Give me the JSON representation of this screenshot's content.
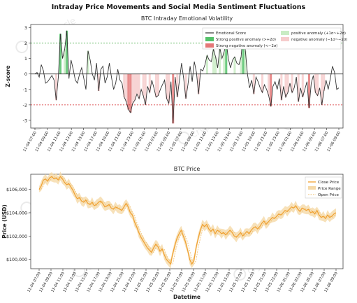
{
  "figure": {
    "suptitle": "Intraday Price Movements and Social Media Sentiment Fluctuations",
    "watermark": "cryptoracle"
  },
  "x_ticks": [
    "11-04 07:00",
    "11-04 09:00",
    "11-04 11:00",
    "11-04 13:00",
    "11-04 15:00",
    "11-04 17:00",
    "11-04 19:00",
    "11-04 21:00",
    "11-04 23:00",
    "11-05 01:00",
    "11-05 03:00",
    "11-05 05:00",
    "11-05 07:00",
    "11-05 09:00",
    "11-05 11:00",
    "11-05 13:00",
    "11-05 15:00",
    "11-05 17:00",
    "11-05 19:00",
    "11-05 21:00",
    "11-05 23:00",
    "11-06 01:00",
    "11-06 03:00",
    "11-06 05:00",
    "11-06 07:00",
    "11-06 09:00"
  ],
  "chart_data": [
    {
      "type": "line",
      "title": "BTC Intraday Emotional Volatility",
      "xlabel": "",
      "ylabel": "Z-score",
      "ylim": [
        -3.5,
        3.2
      ],
      "yticks": [
        -3,
        -2,
        -1,
        0,
        1,
        2,
        3
      ],
      "grid": false,
      "legend_position": "top-right",
      "x_start": "2024-11-04 07:00",
      "x_step_minutes": 30,
      "reference_lines": [
        {
          "y": 0,
          "style": "solid",
          "color": "#333333"
        },
        {
          "y": 2,
          "style": "dotted",
          "color": "#2ca02c"
        },
        {
          "y": -2,
          "style": "dotted",
          "color": "#d62728"
        }
      ],
      "series": [
        {
          "name": "Emotional Score",
          "color": "#333333",
          "values": [
            0.0,
            0.1,
            -0.2,
            0.6,
            0.2,
            -0.6,
            -0.5,
            -0.3,
            -0.1,
            -0.4,
            -1.7,
            -0.2,
            2.6,
            1.0,
            1.6,
            2.8,
            -0.3,
            0.9,
            0.3,
            -0.4,
            -0.6,
            0.0,
            0.4,
            -0.3,
            -1.0,
            1.5,
            0.9,
            0.0,
            -0.4,
            0.7,
            -1.1,
            0.3,
            0.5,
            -0.6,
            -0.2,
            0.7,
            -0.2,
            -1.0,
            -0.6,
            0.3,
            -0.4,
            -0.6,
            -1.5,
            -1.8,
            -2.3,
            -2.5,
            -1.9,
            -1.7,
            -1.3,
            -1.6,
            -1.0,
            -1.4,
            -2.0,
            -0.8,
            -1.2,
            -0.4,
            -0.9,
            -1.5,
            -1.4,
            -1.0,
            -0.7,
            -0.4,
            -1.6,
            -1.9,
            -0.5,
            -3.2,
            -0.2,
            -1.5,
            -0.4,
            0.7,
            -0.3,
            -1.6,
            -0.7,
            0.5,
            -0.5,
            0.8,
            0.1,
            -1.3,
            0.3,
            0.2,
            0.6,
            1.2,
            0.9,
            0.8,
            1.6,
            1.1,
            0.4,
            1.7,
            1.0,
            1.4,
            2.1,
            1.0,
            0.4,
            0.9,
            1.1,
            0.7,
            0.6,
            1.1,
            2.8,
            1.5,
            0.0,
            -0.9,
            -0.4,
            -1.3,
            -0.2,
            -0.5,
            -0.9,
            -1.2,
            -0.7,
            -1.0,
            -1.4,
            -2.1,
            -0.8,
            -0.5,
            -1.0,
            -0.3,
            -1.7,
            -0.8,
            -1.5,
            -1.2,
            -0.6,
            -1.2,
            -0.9,
            -0.2,
            -1.8,
            -0.9,
            -1.5,
            -1.0,
            -0.5,
            -2.2,
            -0.6,
            -0.1,
            -1.2,
            -1.4,
            -0.9,
            -2.0,
            -1.1,
            -0.4,
            -1.0,
            -0.3,
            0.5,
            0.1,
            -1.0,
            -0.9
          ]
        },
        {
          "name": "Strong positive anomaly (>+2σ)",
          "color": "#2ca02c",
          "kind": "band"
        },
        {
          "name": "Strong negative anomaly (<−2σ)",
          "color": "#d62728",
          "kind": "band"
        },
        {
          "name": "positive anomaly (+1σ~+2σ)",
          "color": "#a6dba0",
          "kind": "band"
        },
        {
          "name": "negative anomaly (−1σ~−2σ)",
          "color": "#f4b6b6",
          "kind": "band"
        }
      ]
    },
    {
      "type": "line",
      "title": "BTC Price",
      "xlabel": "Datetime",
      "ylabel": "Price (USD)",
      "ylim": [
        99200,
        107300
      ],
      "yticks": [
        100000,
        102000,
        104000,
        106000
      ],
      "ytick_labels": [
        "$100,000",
        "$102,000",
        "$104,000",
        "$106,000"
      ],
      "grid": false,
      "legend_position": "top-right",
      "x_start": "2024-11-04 07:00",
      "x_step_minutes": 30,
      "series": [
        {
          "name": "Close Price",
          "color": "#f0a030",
          "values": [
            106000,
            106300,
            106800,
            106900,
            106700,
            107000,
            107100,
            106900,
            107000,
            106800,
            107100,
            106900,
            106600,
            106400,
            106500,
            106200,
            105900,
            105500,
            105200,
            105300,
            105000,
            104900,
            105100,
            104800,
            104700,
            104900,
            104600,
            104700,
            104900,
            105000,
            104800,
            104500,
            104600,
            104700,
            104400,
            104300,
            104500,
            104400,
            104300,
            104200,
            104500,
            104800,
            104500,
            104000,
            103800,
            103200,
            102800,
            102300,
            101900,
            101600,
            101300,
            101000,
            100800,
            100600,
            101000,
            101300,
            101100,
            100700,
            100900,
            100400,
            100000,
            99800,
            99600,
            100500,
            101200,
            101800,
            102200,
            102500,
            102000,
            101500,
            100800,
            100000,
            99600,
            99900,
            101000,
            101800,
            102500,
            103000,
            102800,
            103000,
            102600,
            102400,
            102600,
            102200,
            102500,
            102400,
            102200,
            102300,
            102100,
            102300,
            102500,
            102300,
            102000,
            101900,
            102100,
            102300,
            102000,
            102200,
            102400,
            102200,
            102500,
            102700,
            102800,
            102600,
            102800,
            103100,
            103300,
            103000,
            103200,
            103400,
            103600,
            103500,
            103700,
            103900,
            103800,
            104000,
            104200,
            104100,
            104300,
            104500,
            104400,
            104600,
            104300,
            104100,
            104400,
            104300,
            104200,
            104300,
            104000,
            104100,
            103900,
            104200,
            103800,
            103600,
            103700,
            103500,
            103800,
            103600,
            103700,
            103900,
            104000
          ]
        },
        {
          "name": "Price Range",
          "color": "#f5d9a8",
          "kind": "band"
        },
        {
          "name": "Open Price",
          "color": "#f0c070",
          "kind": "dashed"
        }
      ]
    }
  ]
}
